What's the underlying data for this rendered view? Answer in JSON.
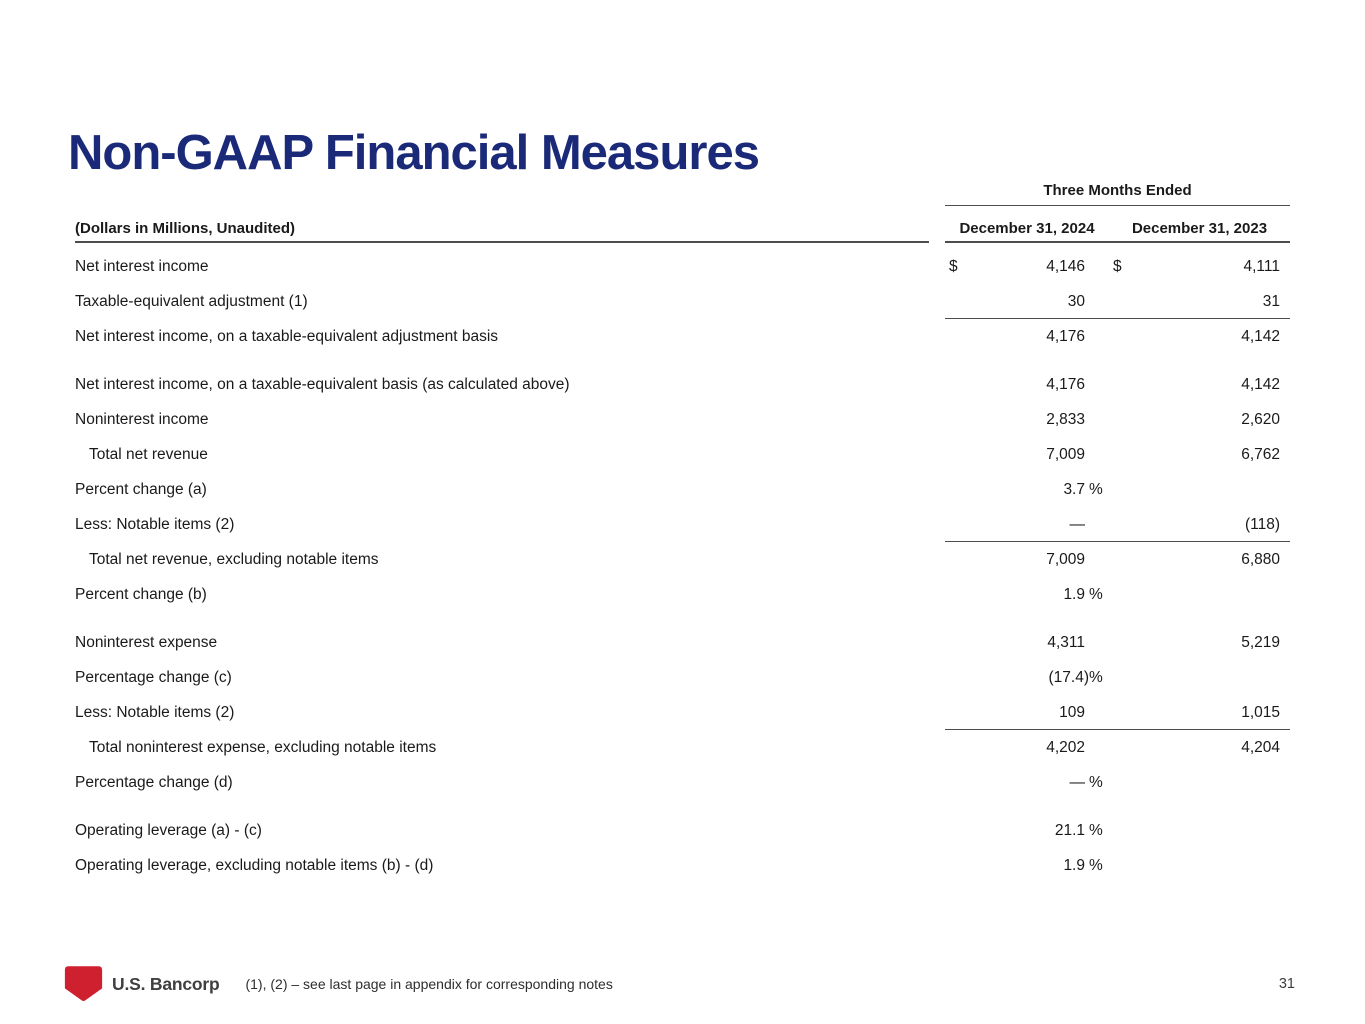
{
  "page": {
    "title": "Non-GAAP Financial Measures",
    "page_number": "31",
    "footer_note": "(1), (2) – see last page in appendix for corresponding notes",
    "logo_text": "U.S. Bancorp"
  },
  "colors": {
    "title_navy": "#1a2a78",
    "logo_red": "#cf202f",
    "rule_gray": "#4d4d4d",
    "text": "#1a1a1a"
  },
  "table": {
    "group_header": "Three Months Ended",
    "left_header": "(Dollars in Millions, Unaudited)",
    "col_headers": [
      "December 31, 2024",
      "December 31, 2023"
    ],
    "rows": [
      {
        "label": "Net interest income",
        "d24": "$",
        "v24": "4,146",
        "d23": "$",
        "v23": "4,111"
      },
      {
        "label": "Taxable-equivalent adjustment (1)",
        "v24": "30",
        "v23": "31",
        "rule": true
      },
      {
        "label": "Net interest income, on a taxable-equivalent adjustment basis",
        "v24": "4,176",
        "v23": "4,142"
      },
      {
        "label": "Net interest income, on a taxable-equivalent basis (as calculated above)",
        "v24": "4,176",
        "v23": "4,142",
        "gap": true
      },
      {
        "label": "Noninterest income",
        "v24": "2,833",
        "v23": "2,620"
      },
      {
        "label": "Total net revenue",
        "indent": true,
        "v24": "7,009",
        "v23": "6,762"
      },
      {
        "label": "Percent change (a)",
        "v24": "3.7",
        "p24": "%"
      },
      {
        "label": "Less: Notable items (2)",
        "v24": "—",
        "v23": "(118)",
        "rule": true
      },
      {
        "label": "Total net revenue, excluding notable items",
        "indent": true,
        "v24": "7,009",
        "v23": "6,880"
      },
      {
        "label": "Percent change (b)",
        "v24": "1.9",
        "p24": "%"
      },
      {
        "label": "Noninterest expense",
        "v24": "4,311",
        "v23": "5,219",
        "gap": true
      },
      {
        "label": "Percentage change (c)",
        "v24": "(17.4)",
        "p24": "%",
        "tight": true
      },
      {
        "label": "Less: Notable items (2)",
        "v24": "109",
        "v23": "1,015",
        "rule": true
      },
      {
        "label": "Total noninterest expense, excluding notable items",
        "indent": true,
        "v24": "4,202",
        "v23": "4,204"
      },
      {
        "label": "Percentage change (d)",
        "v24": "—",
        "p24": "%"
      },
      {
        "label": "Operating leverage (a) - (c)",
        "v24": "21.1",
        "p24": "%",
        "gap": true
      },
      {
        "label": "Operating leverage, excluding notable items (b) - (d)",
        "v24": "1.9",
        "p24": "%"
      }
    ]
  }
}
